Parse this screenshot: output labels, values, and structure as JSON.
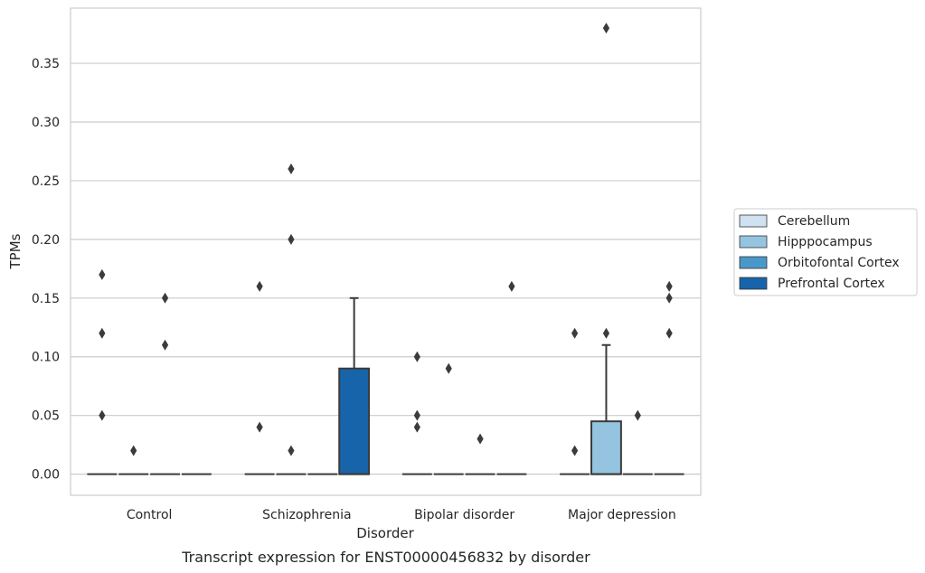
{
  "chart_data": {
    "type": "box",
    "xlabel": "Disorder",
    "ylabel": "TPMs",
    "caption": "Transcript expression for ENST00000456832 by disorder",
    "ylim": [
      -0.018,
      0.397
    ],
    "yticks": [
      "0.00",
      "0.05",
      "0.10",
      "0.15",
      "0.20",
      "0.25",
      "0.30",
      "0.35"
    ],
    "grid": "horizontal",
    "legend_position": "right",
    "categories": [
      "Control",
      "Schizophrenia",
      "Bipolar disorder",
      "Major depression"
    ],
    "series": [
      {
        "name": "Cerebellum",
        "color": "#d0e1f2",
        "boxes": [
          {
            "q1": 0,
            "median": 0,
            "q3": 0,
            "whisker_low": 0,
            "whisker_high": 0,
            "outliers": [
              0.05,
              0.12,
              0.17
            ]
          },
          {
            "q1": 0,
            "median": 0,
            "q3": 0,
            "whisker_low": 0,
            "whisker_high": 0,
            "outliers": [
              0.04,
              0.16
            ]
          },
          {
            "q1": 0,
            "median": 0,
            "q3": 0,
            "whisker_low": 0,
            "whisker_high": 0,
            "outliers": [
              0.04,
              0.05,
              0.1
            ]
          },
          {
            "q1": 0,
            "median": 0,
            "q3": 0,
            "whisker_low": 0,
            "whisker_high": 0,
            "outliers": [
              0.02,
              0.12
            ]
          }
        ]
      },
      {
        "name": "Hipppocampus",
        "color": "#94c4df",
        "boxes": [
          {
            "q1": 0,
            "median": 0,
            "q3": 0,
            "whisker_low": 0,
            "whisker_high": 0,
            "outliers": [
              0.02
            ]
          },
          {
            "q1": 0,
            "median": 0,
            "q3": 0,
            "whisker_low": 0,
            "whisker_high": 0,
            "outliers": [
              0.02,
              0.2,
              0.26
            ]
          },
          {
            "q1": 0,
            "median": 0,
            "q3": 0,
            "whisker_low": 0,
            "whisker_high": 0,
            "outliers": [
              0.09
            ]
          },
          {
            "q1": 0,
            "median": 0,
            "q3": 0.045,
            "whisker_low": 0,
            "whisker_high": 0.11,
            "outliers": [
              0.12,
              0.38
            ]
          }
        ]
      },
      {
        "name": "Orbitofontal Cortex",
        "color": "#4a98c9",
        "boxes": [
          {
            "q1": 0,
            "median": 0,
            "q3": 0,
            "whisker_low": 0,
            "whisker_high": 0,
            "outliers": [
              0.11,
              0.15
            ]
          },
          {
            "q1": 0,
            "median": 0,
            "q3": 0,
            "whisker_low": 0,
            "whisker_high": 0,
            "outliers": []
          },
          {
            "q1": 0,
            "median": 0,
            "q3": 0,
            "whisker_low": 0,
            "whisker_high": 0,
            "outliers": [
              0.03
            ]
          },
          {
            "q1": 0,
            "median": 0,
            "q3": 0,
            "whisker_low": 0,
            "whisker_high": 0,
            "outliers": [
              0.05
            ]
          }
        ]
      },
      {
        "name": "Prefrontal Cortex",
        "color": "#1764ab",
        "boxes": [
          {
            "q1": 0,
            "median": 0,
            "q3": 0,
            "whisker_low": 0,
            "whisker_high": 0,
            "outliers": []
          },
          {
            "q1": 0,
            "median": 0,
            "q3": 0.09,
            "whisker_low": 0,
            "whisker_high": 0.15,
            "outliers": []
          },
          {
            "q1": 0,
            "median": 0,
            "q3": 0,
            "whisker_low": 0,
            "whisker_high": 0,
            "outliers": [
              0.16
            ]
          },
          {
            "q1": 0,
            "median": 0,
            "q3": 0,
            "whisker_low": 0,
            "whisker_high": 0,
            "outliers": [
              0.12,
              0.15,
              0.16
            ]
          }
        ]
      }
    ]
  }
}
